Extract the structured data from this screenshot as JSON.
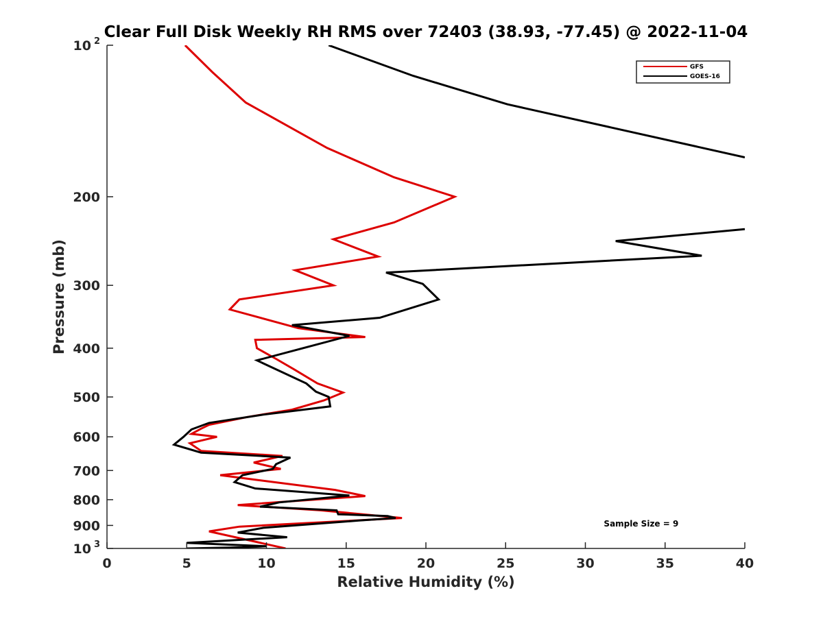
{
  "chart_data": {
    "type": "line",
    "title": "Clear Full Disk Weekly RH RMS over 72403 (38.93, -77.45) @ 2022-11-04",
    "xlabel": "Relative Humidity (%)",
    "ylabel": "Pressure (mb)",
    "xlim": [
      0,
      40
    ],
    "ylim": [
      100,
      1000
    ],
    "y_scale": "log",
    "y_reversed": true,
    "grid": false,
    "legend_position": "top-right",
    "x_ticks": [
      {
        "value": 0,
        "label": "0"
      },
      {
        "value": 5,
        "label": "5"
      },
      {
        "value": 10,
        "label": "10"
      },
      {
        "value": 15,
        "label": "15"
      },
      {
        "value": 20,
        "label": "20"
      },
      {
        "value": 25,
        "label": "25"
      },
      {
        "value": 30,
        "label": "30"
      },
      {
        "value": 35,
        "label": "35"
      },
      {
        "value": 40,
        "label": "40"
      }
    ],
    "y_ticks": [
      {
        "value": 100,
        "label": "10",
        "sup": "2"
      },
      {
        "value": 200,
        "label": "200",
        "sup": ""
      },
      {
        "value": 300,
        "label": "300",
        "sup": ""
      },
      {
        "value": 400,
        "label": "400",
        "sup": ""
      },
      {
        "value": 500,
        "label": "500",
        "sup": ""
      },
      {
        "value": 600,
        "label": "600",
        "sup": ""
      },
      {
        "value": 700,
        "label": "700",
        "sup": ""
      },
      {
        "value": 800,
        "label": "800",
        "sup": ""
      },
      {
        "value": 900,
        "label": "900",
        "sup": ""
      },
      {
        "value": 1000,
        "label": "10",
        "sup": "3"
      }
    ],
    "series": [
      {
        "name": "GFS",
        "color": "#dd0000",
        "x": [
          4.9,
          6.6,
          8.7,
          13.8,
          18.0,
          21.8,
          18.0,
          14.2,
          17.0,
          11.8,
          14.2,
          8.3,
          7.7,
          12.0,
          16.2,
          9.3,
          9.4,
          10.6,
          11.7,
          13.2,
          14.8,
          13.6,
          11.6,
          8.8,
          6.4,
          5.9,
          5.3,
          6.9,
          5.2,
          5.9,
          11.0,
          9.2,
          10.9,
          7.1,
          9.3,
          14.3,
          16.2,
          8.2,
          13.4,
          18.5,
          8.3,
          6.4,
          11.2
        ],
        "y": [
          100,
          113,
          130,
          160,
          183,
          200,
          225,
          243,
          263,
          280,
          300,
          320,
          335,
          365,
          380,
          385,
          400,
          420,
          440,
          470,
          490,
          508,
          530,
          548,
          568,
          578,
          592,
          600,
          618,
          640,
          655,
          675,
          695,
          715,
          730,
          765,
          787,
          820,
          840,
          870,
          905,
          925,
          1000
        ]
      },
      {
        "name": "GOES-16",
        "color": "#000000",
        "x": [
          13.9,
          19.2,
          25.1,
          40.0,
          null,
          40.0,
          31.9,
          37.3,
          17.5,
          19.8,
          20.8,
          17.1,
          11.6,
          15.2,
          9.4,
          12.5,
          13.1,
          13.9,
          14.0,
          9.8,
          6.4,
          5.3,
          4.8,
          4.2,
          5.9,
          11.5,
          10.6,
          10.4,
          8.5,
          8.0,
          9.3,
          15.2,
          10.8,
          9.6,
          14.4,
          14.5,
          17.6,
          18.1,
          15.8,
          9.8,
          8.2,
          11.3,
          5.0,
          10.0,
          8.5,
          5.0
        ],
        "y": [
          100,
          115,
          131,
          167,
          null,
          232,
          245,
          262,
          283,
          298,
          320,
          348,
          360,
          378,
          423,
          470,
          488,
          500,
          522,
          542,
          563,
          580,
          600,
          622,
          645,
          660,
          680,
          695,
          715,
          738,
          760,
          785,
          810,
          826,
          840,
          855,
          862,
          870,
          880,
          910,
          930,
          950,
          975,
          990,
          995,
          1000
        ]
      }
    ],
    "annotations": [
      {
        "text": "Sample Size = 9",
        "x": 33.5,
        "y": 905
      }
    ]
  }
}
